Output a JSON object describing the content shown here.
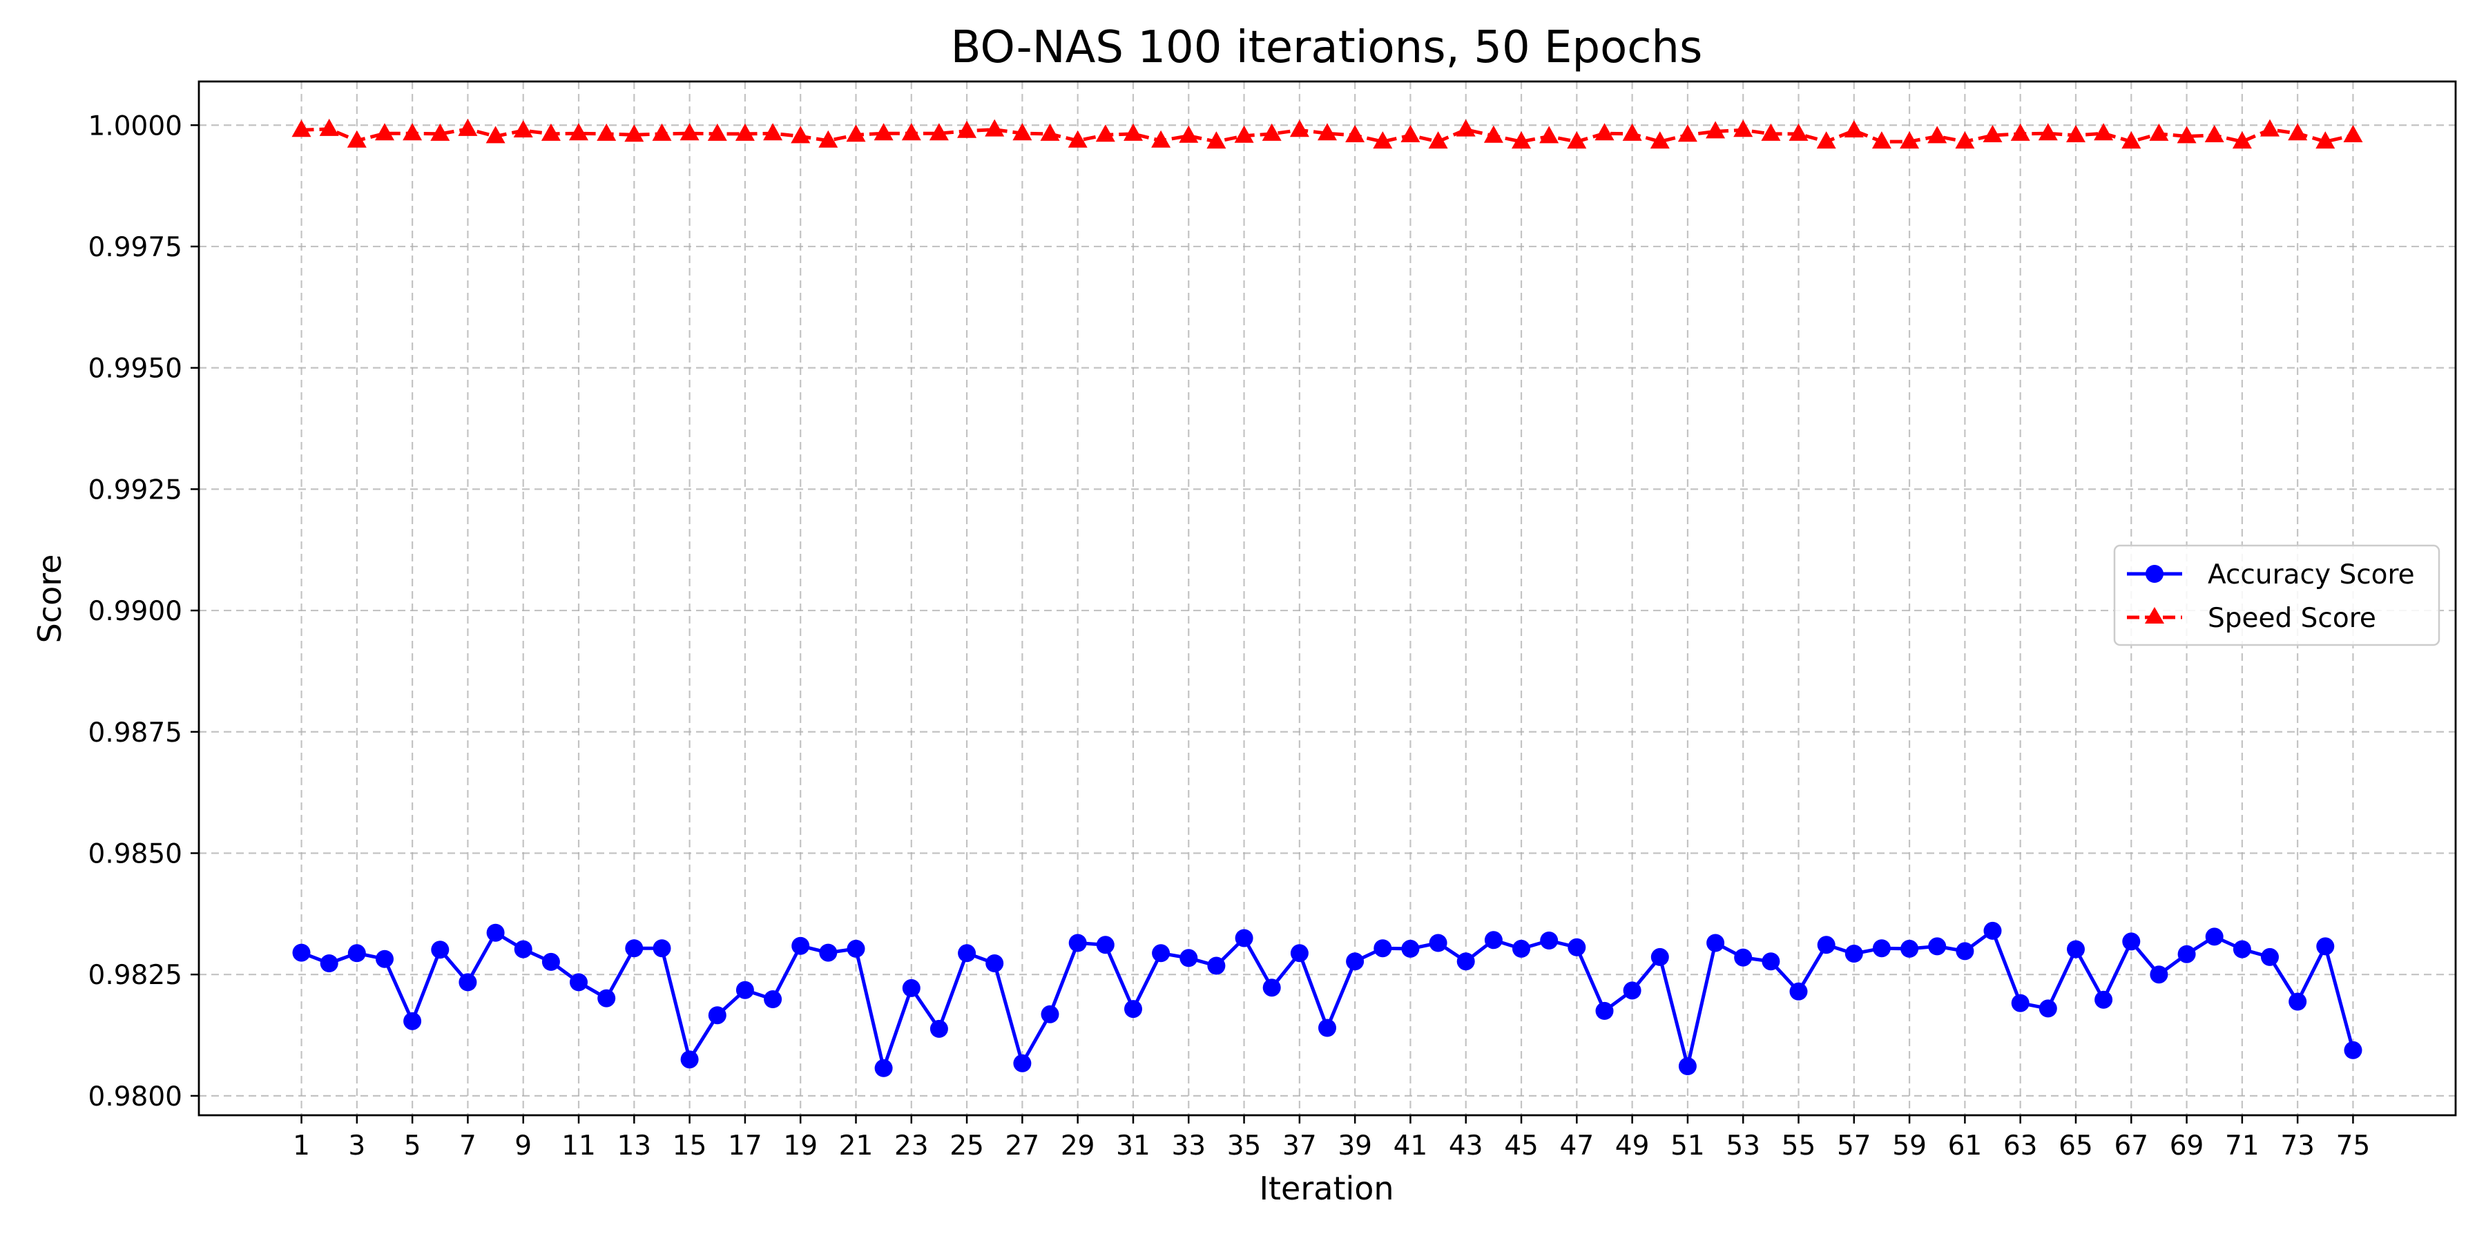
{
  "chart_data": {
    "type": "line",
    "title": "BO-NAS 100 iterations, 50 Epochs",
    "xlabel": "Iteration",
    "ylabel": "Score",
    "xlim": [
      -2.7,
      78.7
    ],
    "ylim": [
      0.9796,
      1.0009
    ],
    "grid": true,
    "legend_position": "center-right",
    "x": [
      1,
      2,
      3,
      4,
      5,
      6,
      7,
      8,
      9,
      10,
      11,
      12,
      13,
      14,
      15,
      16,
      17,
      18,
      19,
      20,
      21,
      22,
      23,
      24,
      25,
      26,
      27,
      28,
      29,
      30,
      31,
      32,
      33,
      34,
      35,
      36,
      37,
      38,
      39,
      40,
      41,
      42,
      43,
      44,
      45,
      46,
      47,
      48,
      49,
      50,
      51,
      52,
      53,
      54,
      55,
      56,
      57,
      58,
      59,
      60,
      61,
      62,
      63,
      64,
      65,
      66,
      67,
      68,
      69,
      70,
      71,
      72,
      73,
      74,
      75
    ],
    "x_tick_labels": [
      "1",
      "3",
      "5",
      "7",
      "9",
      "11",
      "13",
      "15",
      "17",
      "19",
      "21",
      "23",
      "25",
      "27",
      "29",
      "31",
      "33",
      "35",
      "37",
      "39",
      "41",
      "43",
      "45",
      "47",
      "49",
      "51",
      "53",
      "55",
      "57",
      "59",
      "61",
      "63",
      "65",
      "67",
      "69",
      "71",
      "73",
      "75"
    ],
    "y_tick_labels": [
      "0.9800",
      "0.9825",
      "0.9850",
      "0.9875",
      "0.9900",
      "0.9925",
      "0.9950",
      "0.9975",
      "1.0000"
    ],
    "series": [
      {
        "name": "Accuracy Score",
        "color": "#0000ff",
        "marker": "circle",
        "line_style": "solid",
        "values": [
          0.98295,
          0.98273,
          0.98294,
          0.98282,
          0.98154,
          0.98301,
          0.98234,
          0.98336,
          0.98302,
          0.98276,
          0.98234,
          0.98201,
          0.98304,
          0.98304,
          0.98075,
          0.98166,
          0.98218,
          0.98199,
          0.98309,
          0.98295,
          0.98303,
          0.98057,
          0.98222,
          0.98138,
          0.98294,
          0.98273,
          0.98067,
          0.98168,
          0.98315,
          0.98311,
          0.98179,
          0.98294,
          0.98284,
          0.98268,
          0.98325,
          0.98223,
          0.98294,
          0.9814,
          0.98277,
          0.98304,
          0.98303,
          0.98315,
          0.98277,
          0.98321,
          0.98303,
          0.9832,
          0.98306,
          0.98175,
          0.98217,
          0.98286,
          0.98061,
          0.98315,
          0.98285,
          0.98277,
          0.98215,
          0.98311,
          0.98293,
          0.98304,
          0.98303,
          0.98308,
          0.98298,
          0.9834,
          0.98191,
          0.9818,
          0.98302,
          0.98198,
          0.98318,
          0.9825,
          0.98292,
          0.98328,
          0.98302,
          0.98286,
          0.98194,
          0.98308,
          0.98094
        ]
      },
      {
        "name": "Speed Score",
        "color": "#ff0000",
        "marker": "triangle",
        "line_style": "dashed",
        "values": [
          0.9999,
          0.99992,
          0.99968,
          0.99983,
          0.99983,
          0.99982,
          0.99992,
          0.99977,
          0.99989,
          0.99982,
          0.99983,
          0.99982,
          0.9998,
          0.99982,
          0.99983,
          0.99982,
          0.99982,
          0.99983,
          0.99977,
          0.99968,
          0.9998,
          0.99983,
          0.99983,
          0.99983,
          0.99988,
          0.99991,
          0.99983,
          0.99982,
          0.99968,
          0.9998,
          0.99982,
          0.99968,
          0.99978,
          0.99966,
          0.99978,
          0.99982,
          0.9999,
          0.99983,
          0.99979,
          0.99966,
          0.99979,
          0.99966,
          0.99991,
          0.99978,
          0.99966,
          0.99977,
          0.99966,
          0.99983,
          0.99982,
          0.99966,
          0.9998,
          0.99987,
          0.9999,
          0.99982,
          0.99982,
          0.99966,
          0.99989,
          0.99966,
          0.99966,
          0.99977,
          0.99966,
          0.99979,
          0.99982,
          0.99983,
          0.99979,
          0.99983,
          0.99966,
          0.99982,
          0.99977,
          0.99979,
          0.99966,
          0.99991,
          0.99983,
          0.99966,
          0.99979
        ]
      }
    ]
  }
}
